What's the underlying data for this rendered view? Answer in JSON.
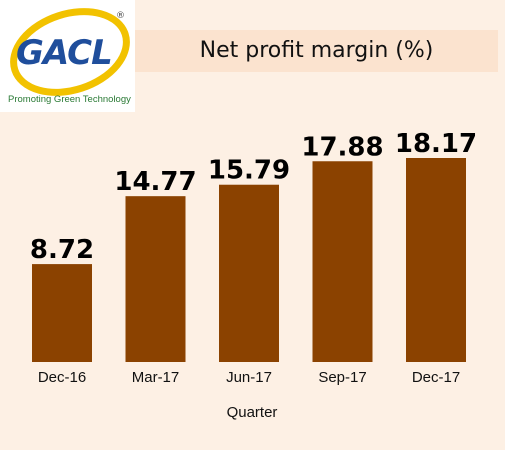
{
  "logo": {
    "brand": "GACL",
    "tagline": "Promoting Green Technology",
    "registered": "®",
    "colors": {
      "ring": "#f2c200",
      "wordmark": "#1f4e9c",
      "tagline": "#2a7a35"
    }
  },
  "colors": {
    "background": "#fdf0e4",
    "title_bar": "#fbe3cf",
    "bar": "#8b4200",
    "value_label": "#000000",
    "axis_text": "#111111"
  },
  "chart_data": {
    "type": "bar",
    "title": "Net profit margin (%)",
    "xlabel": "Quarter",
    "ylabel": "",
    "categories": [
      "Dec-16",
      "Mar-17",
      "Jun-17",
      "Sep-17",
      "Dec-17"
    ],
    "values": [
      8.72,
      14.77,
      15.79,
      17.88,
      18.17
    ],
    "value_labels": [
      "8.72",
      "14.77",
      "15.79",
      "17.88",
      "18.17"
    ],
    "ylim": [
      0,
      18.17
    ],
    "grid": false,
    "legend": "none"
  }
}
